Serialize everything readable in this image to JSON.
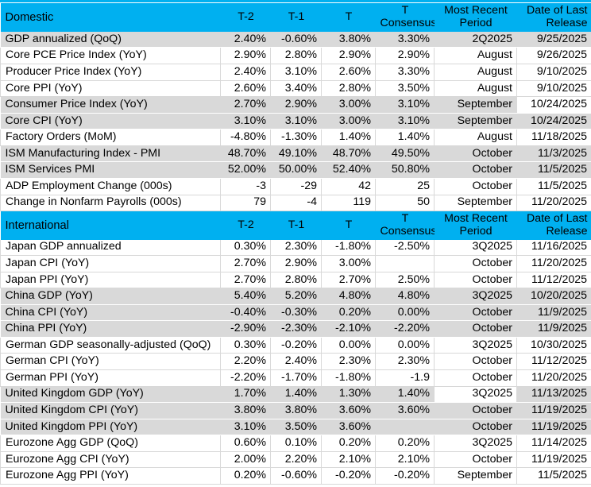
{
  "colors": {
    "section_header_bg": "#00B0F0",
    "row_shaded_bg": "#D9D9D9",
    "row_plain_bg": "#FFFFFF",
    "gridline": "#D9D9D9",
    "text": "#000000"
  },
  "sections": [
    {
      "id": "domestic",
      "title": "Domestic",
      "col_headers": [
        "T-2",
        "T-1",
        "T",
        "T\nConsensus",
        "Most Recent\nPeriod",
        "Date of Last\nRelease"
      ],
      "rows": [
        {
          "shade": "gray",
          "white_cells": [],
          "cells": [
            "GDP annualized (QoQ)",
            "2.40%",
            "-0.60%",
            "3.80%",
            "3.30%",
            "2Q2025",
            "9/25/2025"
          ]
        },
        {
          "shade": "white",
          "white_cells": [],
          "cells": [
            "Core PCE Price Index (YoY)",
            "2.90%",
            "2.80%",
            "2.90%",
            "2.90%",
            "August",
            "9/26/2025"
          ]
        },
        {
          "shade": "white",
          "white_cells": [],
          "cells": [
            "Producer Price Index (YoY)",
            "2.40%",
            "3.10%",
            "2.60%",
            "3.30%",
            "August",
            "9/10/2025"
          ]
        },
        {
          "shade": "white",
          "white_cells": [],
          "cells": [
            "Core PPI (YoY)",
            "2.60%",
            "3.40%",
            "2.80%",
            "3.50%",
            "August",
            "9/10/2025"
          ]
        },
        {
          "shade": "gray",
          "white_cells": [
            6
          ],
          "cells": [
            "Consumer Price Index (YoY)",
            "2.70%",
            "2.90%",
            "3.00%",
            "3.10%",
            "September",
            "10/24/2025"
          ]
        },
        {
          "shade": "gray",
          "white_cells": [],
          "cells": [
            "Core CPI  (YoY)",
            "3.10%",
            "3.10%",
            "3.00%",
            "3.10%",
            "September",
            "10/24/2025"
          ]
        },
        {
          "shade": "white",
          "white_cells": [],
          "cells": [
            "Factory Orders (MoM)",
            "-4.80%",
            "-1.30%",
            "1.40%",
            "1.40%",
            "August",
            "11/18/2025"
          ]
        },
        {
          "shade": "gray",
          "white_cells": [],
          "cells": [
            "ISM Manufacturing Index - PMI",
            "48.70%",
            "49.10%",
            "48.70%",
            "49.50%",
            "October",
            "11/3/2025"
          ]
        },
        {
          "shade": "gray",
          "white_cells": [],
          "cells": [
            "ISM Services PMI",
            "52.00%",
            "50.00%",
            "52.40%",
            "50.80%",
            "October",
            "11/5/2025"
          ]
        },
        {
          "shade": "white",
          "white_cells": [],
          "cells": [
            "ADP Employment Change (000s)",
            "-3",
            "-29",
            "42",
            "25",
            "October",
            "11/5/2025"
          ]
        },
        {
          "shade": "white",
          "white_cells": [],
          "cells": [
            "Change in Nonfarm Payrolls (000s)",
            "79",
            "-4",
            "119",
            "50",
            "September",
            "11/20/2025"
          ]
        }
      ]
    },
    {
      "id": "international",
      "title": "International",
      "col_headers": [
        "T-2",
        "T-1",
        "T",
        "T\nConsensus",
        "Most Recent\nPeriod",
        "Date of Last\nRelease"
      ],
      "rows": [
        {
          "shade": "white",
          "white_cells": [],
          "cells": [
            "Japan GDP annualized",
            "0.30%",
            "2.30%",
            "-1.80%",
            "-2.50%",
            "3Q2025",
            "11/16/2025"
          ]
        },
        {
          "shade": "white",
          "white_cells": [],
          "cells": [
            "Japan CPI (YoY)",
            "2.70%",
            "2.90%",
            "3.00%",
            "",
            "October",
            "11/20/2025"
          ]
        },
        {
          "shade": "white",
          "white_cells": [],
          "cells": [
            "Japan PPI (YoY)",
            "2.70%",
            "2.80%",
            "2.70%",
            "2.50%",
            "October",
            "11/12/2025"
          ]
        },
        {
          "shade": "gray",
          "white_cells": [],
          "cells": [
            "China GDP (YoY)",
            "5.40%",
            "5.20%",
            "4.80%",
            "4.80%",
            "3Q2025",
            "10/20/2025"
          ]
        },
        {
          "shade": "gray",
          "white_cells": [],
          "cells": [
            "China CPI (YoY)",
            "-0.40%",
            "-0.30%",
            "0.20%",
            "0.00%",
            "October",
            "11/9/2025"
          ]
        },
        {
          "shade": "gray",
          "white_cells": [],
          "cells": [
            "China PPI (YoY)",
            "-2.90%",
            "-2.30%",
            "-2.10%",
            "-2.20%",
            "October",
            "11/9/2025"
          ]
        },
        {
          "shade": "white",
          "white_cells": [],
          "cells": [
            "German GDP seasonally-adjusted (QoQ)",
            "0.30%",
            "-0.20%",
            "0.00%",
            "0.00%",
            "3Q2025",
            "10/30/2025"
          ]
        },
        {
          "shade": "white",
          "white_cells": [],
          "cells": [
            "German CPI (YoY)",
            "2.20%",
            "2.40%",
            "2.30%",
            "2.30%",
            "October",
            "11/12/2025"
          ]
        },
        {
          "shade": "white",
          "white_cells": [],
          "cells": [
            "German PPI (YoY)",
            "-2.20%",
            "-1.70%",
            "-1.80%",
            "-1.9",
            "October",
            "11/20/2025"
          ]
        },
        {
          "shade": "gray",
          "white_cells": [
            5
          ],
          "cells": [
            "United Kingdom GDP (YoY)",
            "1.70%",
            "1.40%",
            "1.30%",
            "1.40%",
            "3Q2025",
            "11/13/2025"
          ]
        },
        {
          "shade": "gray",
          "white_cells": [],
          "cells": [
            "United Kingdom CPI (YoY)",
            "3.80%",
            "3.80%",
            "3.60%",
            "3.60%",
            "October",
            "11/19/2025"
          ]
        },
        {
          "shade": "gray",
          "white_cells": [],
          "cells": [
            "United Kingdom  PPI (YoY)",
            "3.10%",
            "3.50%",
            "3.60%",
            "",
            "October",
            "11/19/2025"
          ]
        },
        {
          "shade": "white",
          "white_cells": [],
          "cells": [
            "Eurozone Agg GDP (QoQ)",
            "0.60%",
            "0.10%",
            "0.20%",
            "0.20%",
            "3Q2025",
            "11/14/2025"
          ]
        },
        {
          "shade": "white",
          "white_cells": [],
          "cells": [
            "Eurozone Agg CPI (YoY)",
            "2.00%",
            "2.20%",
            "2.10%",
            "2.10%",
            "October",
            "11/19/2025"
          ]
        },
        {
          "shade": "white",
          "white_cells": [],
          "cells": [
            "Eurozone Agg PPI (YoY)",
            "0.20%",
            "-0.60%",
            "-0.20%",
            "-0.20%",
            "September",
            "11/5/2025"
          ]
        }
      ]
    }
  ]
}
